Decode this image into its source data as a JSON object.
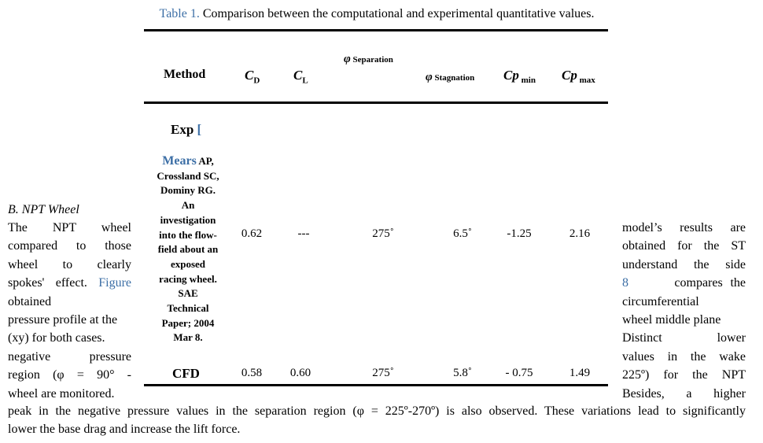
{
  "caption": {
    "label": "Table 1.",
    "text": " Comparison between the computational and experimental quantitative values."
  },
  "table": {
    "headers": {
      "method": "Method",
      "cd_sym": "C",
      "cd_sub": "D",
      "cl_sym": "C",
      "cl_sub": "L",
      "phi": "φ",
      "separation": " Separation",
      "stagnation": " Stagnation",
      "cp": "Cp",
      "min": " min",
      "max": " max"
    },
    "exp_row": {
      "method": "Exp",
      "bracket": " [",
      "ref_author": "Mears",
      "ref_lines": [
        "AP,",
        "Crossland SC,",
        "Dominy RG.",
        "An",
        "investigation",
        "into the flow-",
        "field about an",
        "exposed",
        "racing wheel.",
        "SAE",
        "Technical",
        "Paper; 2004",
        "Mar 8."
      ],
      "cd": "0.62",
      "cl": "---",
      "separation": "275˚",
      "stagnation": "6.5˚",
      "cp_min": "-1.25",
      "cp_max": "2.16"
    },
    "cfd_row": {
      "method": "CFD",
      "cd": "0.58",
      "cl": "0.60",
      "separation": "275˚",
      "stagnation": "5.8˚",
      "cp_min": "- 0.75",
      "cp_max": "1.49"
    }
  },
  "body": {
    "section_heading": "B.   NPT Wheel",
    "left_lines": [
      "The NPT wheel",
      "compared to those",
      "wheel to clearly",
      "spokes' effect.",
      "obtained",
      "pressure profile at the",
      "(xy) for both cases.",
      "negative pressure",
      "region (φ = 90° -",
      "wheel are monitored."
    ],
    "figure_link": "Figure",
    "right_lines": [
      "model’s results are",
      "obtained for the ST",
      "understand the side",
      "compares the",
      "circumferential",
      "wheel middle plane",
      "Distinct lower",
      "values in the wake",
      "225º) for the NPT",
      "Besides, a higher"
    ],
    "right_link": "8",
    "full_lines": [
      "peak in the negative pressure values in the separation region (φ = 225º-270º) is also observed. These variations lead to significantly",
      "lower the base drag and increase the lift force."
    ]
  }
}
